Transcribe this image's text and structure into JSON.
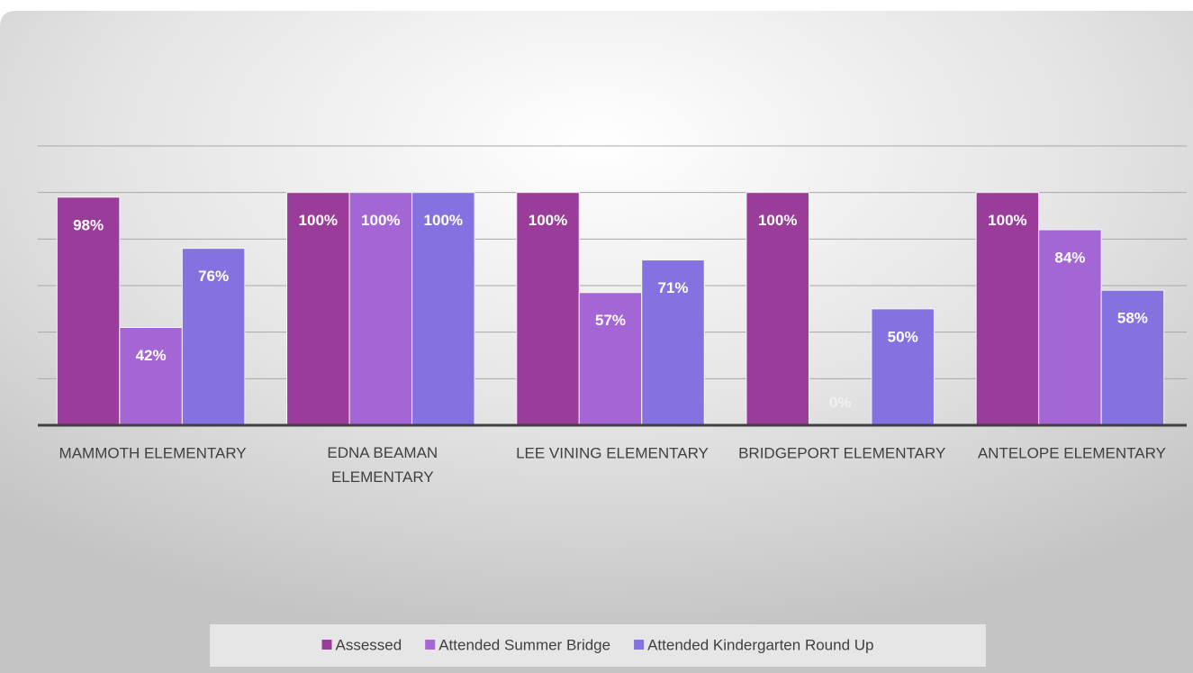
{
  "chart_data": {
    "type": "bar",
    "categories": [
      "MAMMOTH ELEMENTARY",
      "EDNA BEAMAN ELEMENTARY",
      "LEE VINING ELEMENTARY",
      "BRIDGEPORT ELEMENTARY",
      "ANTELOPE ELEMENTARY"
    ],
    "series": [
      {
        "name": "Assessed",
        "color": "#9a3c9a",
        "values": [
          98,
          100,
          100,
          100,
          100
        ],
        "value_labels": [
          "98%",
          "100%",
          "100%",
          "100%",
          "100%"
        ]
      },
      {
        "name": "Attended Summer Bridge",
        "color": "#a466d4",
        "values": [
          42,
          100,
          57,
          0,
          84
        ],
        "value_labels": [
          "42%",
          "100%",
          "57%",
          "0%",
          "84%"
        ]
      },
      {
        "name": "Attended Kindergarten Round Up",
        "color": "#8571df",
        "values": [
          76,
          100,
          71,
          50,
          58
        ],
        "value_labels": [
          "76%",
          "100%",
          "71%",
          "50%",
          "58%"
        ]
      }
    ],
    "ylim": [
      0,
      120
    ],
    "yticks": [
      0,
      20,
      40,
      60,
      80,
      100,
      120
    ],
    "grid": true,
    "legend": "bottom"
  }
}
